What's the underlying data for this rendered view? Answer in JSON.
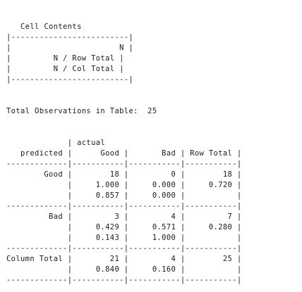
{
  "legend": {
    "lines": [
      "",
      "   Cell Contents",
      "|-------------------------|",
      "|                       N |",
      "|         N / Row Total |",
      "|         N / Col Total |",
      "|-------------------------|"
    ]
  },
  "summary": {
    "lines": [
      "",
      "",
      "Total Observations in Table:  25",
      "",
      ""
    ]
  },
  "table": {
    "lines": [
      "             | actual",
      "   predicted |      Good |       Bad | Row Total |",
      "-------------|-----------|-----------|-----------|",
      "        Good |        18 |         0 |        18 |",
      "             |     1.000 |     0.000 |     0.720 |",
      "             |     0.857 |     0.000 |           |",
      "-------------|-----------|-----------|-----------|",
      "         Bad |         3 |         4 |         7 |",
      "             |     0.429 |     0.571 |     0.280 |",
      "             |     0.143 |     1.000 |           |",
      "-------------|-----------|-----------|-----------|",
      "Column Total |        21 |         4 |        25 |",
      "             |     0.840 |     0.160 |           |",
      "-------------|-----------|-----------|-----------|"
    ]
  }
}
